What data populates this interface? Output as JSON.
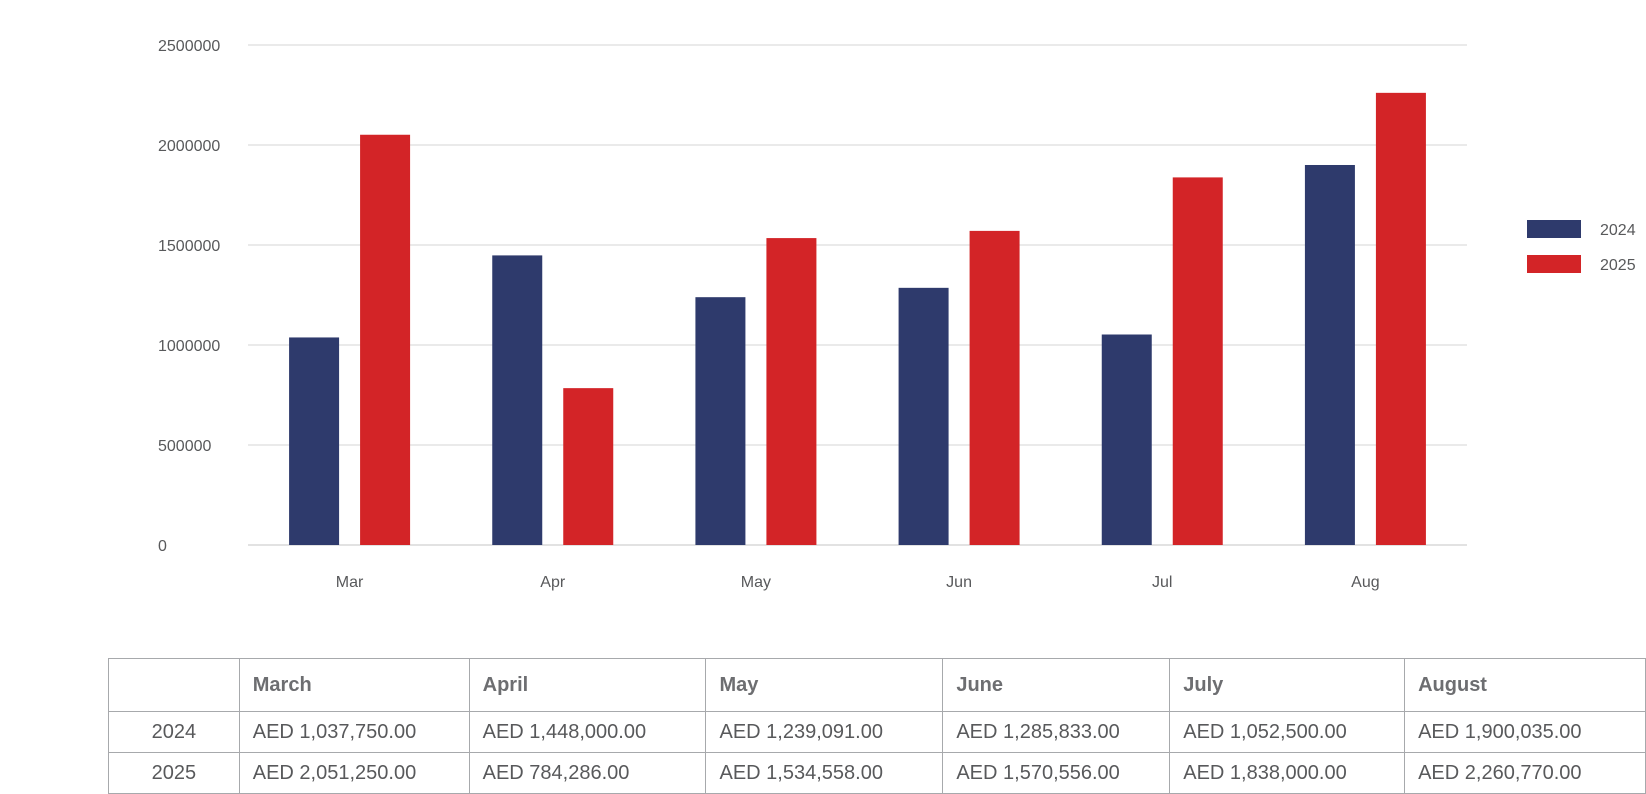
{
  "chart_data": {
    "type": "bar",
    "categories": [
      "Mar",
      "Apr",
      "May",
      "Jun",
      "Jul",
      "Aug"
    ],
    "series": [
      {
        "name": "2024",
        "color": "#2e3a6c",
        "values": [
          1037750,
          1448000,
          1239091,
          1285833,
          1052500,
          1900035
        ]
      },
      {
        "name": "2025",
        "color": "#d32427",
        "values": [
          2051250,
          784286,
          1534558,
          1570556,
          1838000,
          2260770
        ]
      }
    ],
    "ylim": [
      0,
      2500000
    ],
    "yticks": [
      "2500000",
      "2000000",
      "1500000",
      "1000000",
      "500000",
      "0"
    ],
    "grid": true,
    "legend": "right",
    "title": "",
    "xlabel": "",
    "ylabel": ""
  },
  "table": {
    "columns": [
      "",
      "March",
      "April",
      "May",
      "June",
      "July",
      "August"
    ],
    "rows": [
      {
        "year": "2024",
        "cells": [
          "AED 1,037,750.00",
          "AED 1,448,000.00",
          "AED 1,239,091.00",
          "AED 1,285,833.00",
          "AED 1,052,500.00",
          "AED 1,900,035.00"
        ]
      },
      {
        "year": "2025",
        "cells": [
          "AED 2,051,250.00",
          "AED 784,286.00",
          "AED 1,534,558.00",
          "AED 1,570,556.00",
          "AED 1,838,000.00",
          "AED 2,260,770.00"
        ]
      }
    ]
  }
}
